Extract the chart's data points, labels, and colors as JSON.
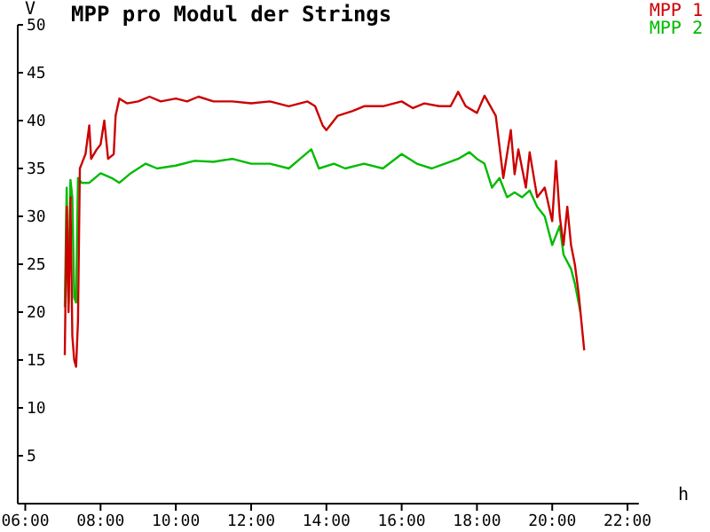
{
  "chart_data": {
    "type": "line",
    "title": "MPP pro Modul der Strings",
    "ylabel": "V",
    "xlabel": "h",
    "legend": "top right",
    "grid": false,
    "marker": "none",
    "line_style": "solid",
    "xlim": [
      5.8,
      22.3
    ],
    "xticks": [
      {
        "value": 6,
        "label": "06:00"
      },
      {
        "value": 8,
        "label": "08:00"
      },
      {
        "value": 10,
        "label": "10:00"
      },
      {
        "value": 12,
        "label": "12:00"
      },
      {
        "value": 14,
        "label": "14:00"
      },
      {
        "value": 16,
        "label": "16:00"
      },
      {
        "value": 18,
        "label": "18:00"
      },
      {
        "value": 20,
        "label": "20:00"
      },
      {
        "value": 22,
        "label": "22:00"
      }
    ],
    "ylim": [
      0,
      50
    ],
    "yticks": [
      5,
      10,
      15,
      20,
      25,
      30,
      35,
      40,
      45,
      50
    ],
    "series": [
      {
        "name": "MPP 1",
        "color": "#cc0000",
        "x": [
          7.05,
          7.1,
          7.15,
          7.2,
          7.25,
          7.3,
          7.35,
          7.4,
          7.45,
          7.5,
          7.6,
          7.7,
          7.75,
          7.9,
          8.0,
          8.1,
          8.2,
          8.35,
          8.4,
          8.5,
          8.7,
          9.0,
          9.3,
          9.6,
          10.0,
          10.3,
          10.6,
          11.0,
          11.5,
          12.0,
          12.5,
          13.0,
          13.5,
          13.7,
          13.9,
          14.0,
          14.3,
          14.7,
          15.0,
          15.5,
          16.0,
          16.3,
          16.6,
          17.0,
          17.3,
          17.5,
          17.7,
          18.0,
          18.2,
          18.5,
          18.7,
          18.9,
          19.0,
          19.1,
          19.3,
          19.4,
          19.6,
          19.8,
          20.0,
          20.1,
          20.2,
          20.3,
          20.4,
          20.5,
          20.6,
          20.7,
          20.85
        ],
        "values": [
          15.5,
          31,
          20,
          32,
          17.5,
          15,
          14.3,
          19,
          35,
          35.5,
          36.5,
          39.5,
          36,
          37,
          37.5,
          40,
          36,
          36.5,
          40.5,
          42.3,
          41.8,
          42,
          42.5,
          42,
          42.3,
          42,
          42.5,
          42,
          42,
          41.8,
          42,
          41.5,
          42,
          41.5,
          39.5,
          39,
          40.5,
          41,
          41.5,
          41.5,
          42,
          41.3,
          41.8,
          41.5,
          41.5,
          43,
          41.5,
          40.8,
          42.6,
          40.5,
          34,
          39,
          34.4,
          37,
          33,
          36.7,
          32,
          33,
          29.5,
          35.8,
          30,
          27,
          31,
          27,
          25,
          22,
          16
        ]
      },
      {
        "name": "MPP 2",
        "color": "#00bb00",
        "x": [
          7.05,
          7.1,
          7.15,
          7.2,
          7.25,
          7.3,
          7.35,
          7.4,
          7.5,
          7.7,
          8.0,
          8.3,
          8.5,
          8.8,
          9.0,
          9.2,
          9.5,
          10.0,
          10.5,
          11.0,
          11.5,
          12.0,
          12.5,
          13.0,
          13.3,
          13.6,
          13.8,
          14.2,
          14.5,
          15.0,
          15.5,
          16.0,
          16.4,
          16.8,
          17.0,
          17.5,
          17.8,
          18.0,
          18.2,
          18.4,
          18.6,
          18.8,
          19.0,
          19.2,
          19.4,
          19.6,
          19.8,
          20.0,
          20.2,
          20.3,
          20.5,
          20.6,
          20.75
        ],
        "values": [
          20.5,
          33,
          21,
          33.8,
          32,
          21.5,
          21,
          34,
          33.5,
          33.5,
          34.5,
          34,
          33.5,
          34.5,
          35,
          35.5,
          35,
          35.3,
          35.8,
          35.7,
          36,
          35.5,
          35.5,
          35,
          36,
          37,
          35,
          35.5,
          35,
          35.5,
          35,
          36.5,
          35.5,
          35,
          35.3,
          36,
          36.7,
          36,
          35.5,
          33,
          34,
          32,
          32.5,
          32,
          32.7,
          31,
          30,
          27,
          29,
          26,
          24.5,
          23,
          20
        ]
      }
    ]
  }
}
